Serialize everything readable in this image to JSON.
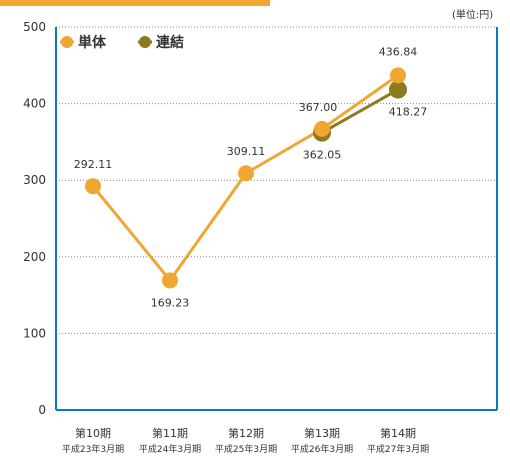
{
  "colors": {
    "accent": "#0a7bbf",
    "single": "#f0a630",
    "consolidated": "#8c7a1e",
    "grid": "#888888",
    "text": "#333333"
  },
  "chart_data": {
    "type": "line",
    "unit": "(単位:円)",
    "categories": [
      "第10期",
      "第11期",
      "第12期",
      "第13期",
      "第14期"
    ],
    "subcategories": [
      "平成23年3月期",
      "平成24年3月期",
      "平成25年3月期",
      "平成26年3月期",
      "平成27年3月期"
    ],
    "ylim": [
      0,
      500
    ],
    "yticks": [
      0,
      100,
      200,
      300,
      400,
      500
    ],
    "grid": true,
    "legend_position": "top-left",
    "series": [
      {
        "name": "単体",
        "color": "#f0a630",
        "values": [
          292.11,
          169.23,
          309.11,
          367.0,
          436.84
        ],
        "labels": [
          "292.11",
          "169.23",
          "309.11",
          "367.00",
          "436.84"
        ]
      },
      {
        "name": "連結",
        "color": "#8c7a1e",
        "values": [
          null,
          null,
          null,
          362.05,
          418.27
        ],
        "labels": [
          null,
          null,
          null,
          "362.05",
          "418.27"
        ]
      }
    ]
  }
}
